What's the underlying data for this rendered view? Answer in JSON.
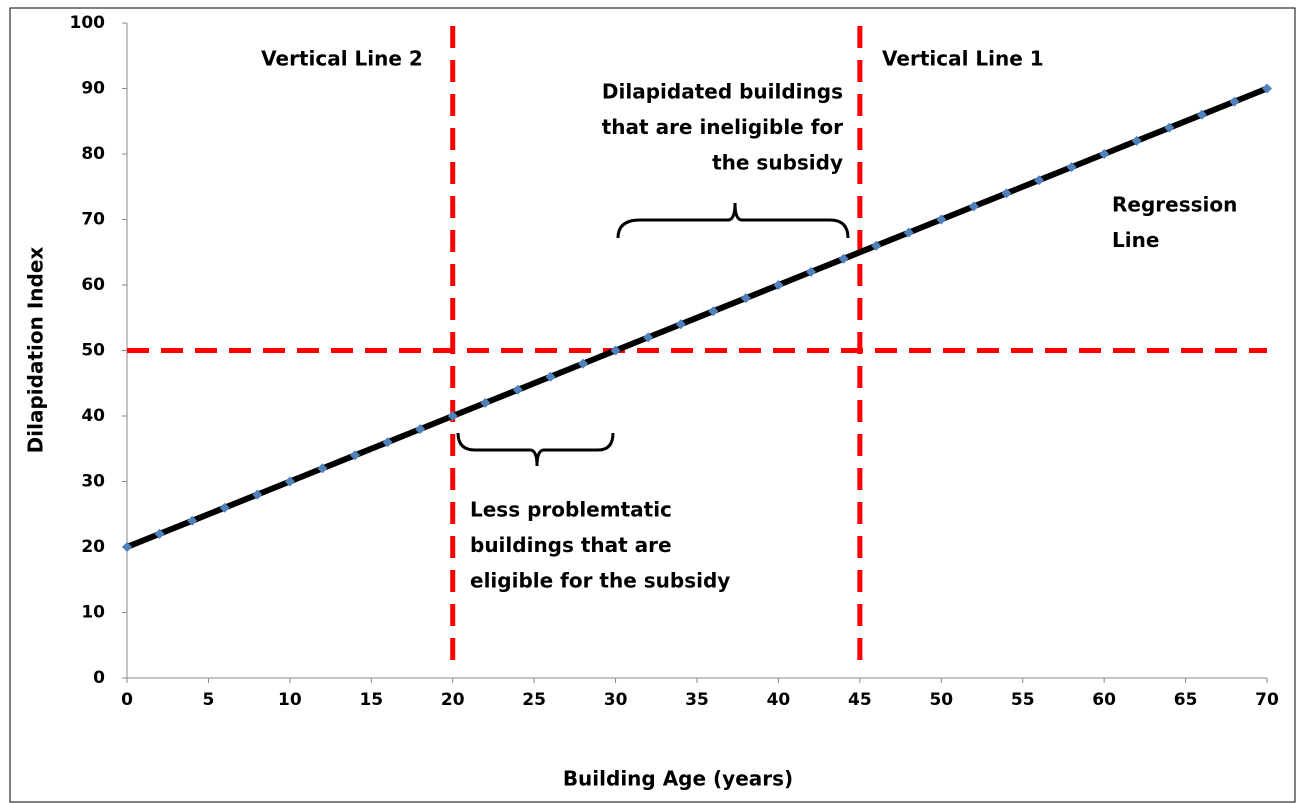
{
  "chart_data": {
    "type": "scatter",
    "x_label": "Building Age (years)",
    "y_label": "Dilapidation Index",
    "x": [
      0,
      2,
      4,
      6,
      8,
      10,
      12,
      14,
      16,
      18,
      20,
      22,
      24,
      26,
      28,
      30,
      32,
      34,
      36,
      38,
      40,
      42,
      44,
      46,
      48,
      50,
      52,
      54,
      56,
      58,
      60,
      62,
      64,
      66,
      68,
      70
    ],
    "series": [
      {
        "color": "#4f81bd",
        "line_color": "#000000",
        "values": [
          20,
          22,
          24,
          26,
          28,
          30,
          32,
          34,
          36,
          38,
          40,
          42,
          44,
          46,
          48,
          50,
          52,
          54,
          56,
          58,
          60,
          62,
          64,
          66,
          68,
          70,
          72,
          74,
          76,
          78,
          80,
          82,
          84,
          86,
          88,
          90
        ]
      }
    ],
    "xlim": [
      0,
      70
    ],
    "ylim": [
      0,
      100
    ],
    "xticks": [
      0,
      5,
      10,
      15,
      20,
      25,
      30,
      35,
      40,
      45,
      50,
      55,
      60,
      65,
      70
    ],
    "yticks": [
      0,
      10,
      20,
      30,
      40,
      50,
      60,
      70,
      80,
      90,
      100
    ],
    "grid": false,
    "vlines": [
      20,
      45
    ],
    "hlines": [
      50
    ],
    "ref_color": "#ff0000",
    "annotations": [
      {
        "lines": [
          "Vertical Line 2"
        ]
      },
      {
        "lines": [
          "Vertical Line 1"
        ]
      },
      {
        "lines": [
          "Dilapidated buildings",
          "that are ineligible for",
          "the subsidy"
        ]
      },
      {
        "lines": [
          "Regression",
          "Line"
        ]
      },
      {
        "lines": [
          "Less problemtatic",
          "buildings that are",
          "eligible for the subsidy"
        ]
      }
    ]
  }
}
